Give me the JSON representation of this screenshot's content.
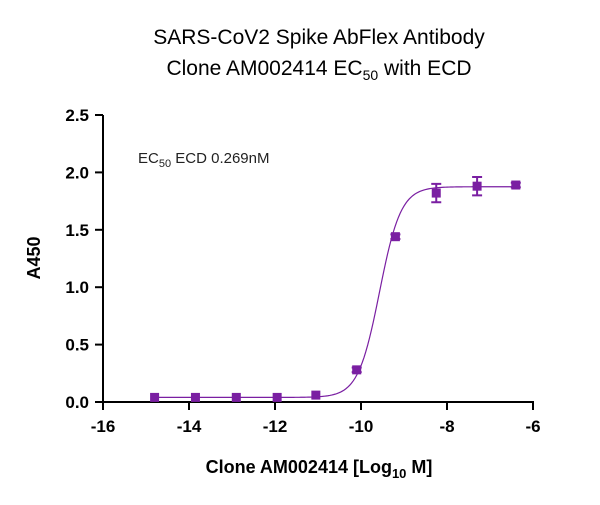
{
  "chart_data": {
    "type": "scatter",
    "title_line1": "SARS-CoV2 Spike AbFlex Antibody",
    "title_line2_prefix": "Clone AM002414 EC",
    "title_line2_sub": "50",
    "title_line2_suffix": "  with ECD",
    "annotation_prefix": "EC",
    "annotation_sub": "50",
    "annotation_suffix": " ECD  0.269nM",
    "xlabel_prefix": "Clone AM002414 [Log",
    "xlabel_sub": "10",
    "xlabel_suffix": " M]",
    "ylabel": "A450",
    "xlim": [
      -16,
      -6
    ],
    "ylim": [
      0,
      2.5
    ],
    "x_ticks": [
      -16,
      -14,
      -12,
      -10,
      -8,
      -6
    ],
    "x_tick_labels": [
      "-16",
      "-14",
      "-12",
      "-10",
      "-8",
      "-6"
    ],
    "y_ticks": [
      0,
      0.5,
      1.0,
      1.5,
      2.0,
      2.5
    ],
    "y_tick_labels": [
      "0.0",
      "0.5",
      "1.0",
      "1.5",
      "2.0",
      "2.5"
    ],
    "series": [
      {
        "x": [
          -14.8,
          -13.85,
          -12.9,
          -11.95,
          -11.05,
          -10.1,
          -9.2,
          -8.25,
          -7.3,
          -6.4
        ],
        "y": [
          0.04,
          0.04,
          0.04,
          0.04,
          0.06,
          0.28,
          1.44,
          1.82,
          1.88,
          1.89
        ],
        "err": [
          0,
          0,
          0,
          0,
          0,
          0.02,
          0.02,
          0.08,
          0.08,
          0.02
        ]
      }
    ],
    "fit": {
      "bottom": 0.04,
      "top": 1.875,
      "logEC50": -9.57,
      "hill": 1.75
    },
    "color": "#7a1fa2"
  }
}
